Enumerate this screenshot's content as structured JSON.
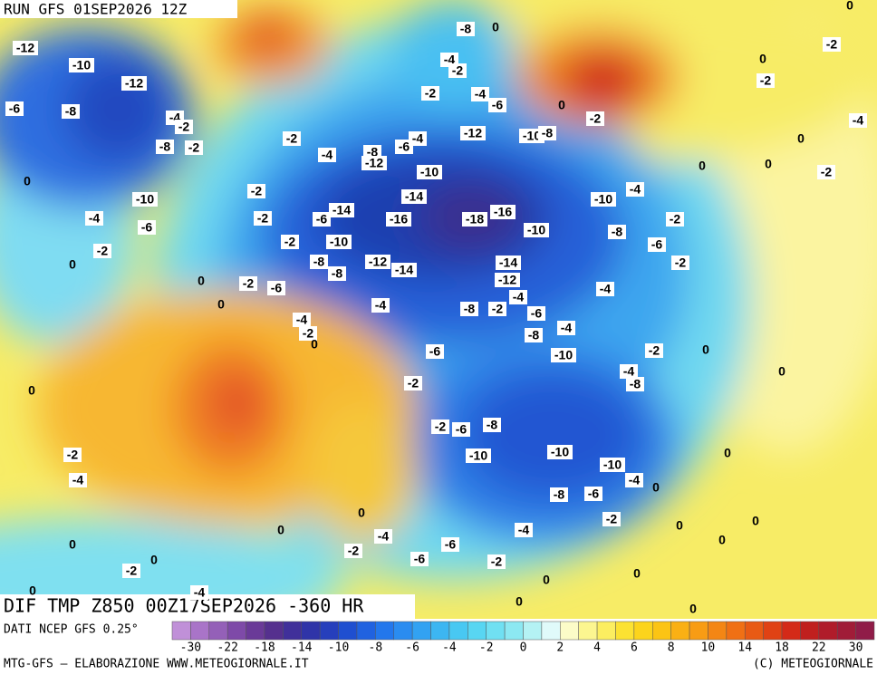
{
  "header": {
    "run": "RUN GFS 01SEP2026 12Z"
  },
  "map": {
    "title": "DIF TMP Z850 00Z17SEP2026 -360 HR",
    "labels": [
      -12,
      -10,
      -12,
      -6,
      -8,
      -4,
      -2,
      -8,
      -2,
      -2,
      -4,
      -8,
      -12,
      -6,
      -4,
      -10,
      -14,
      -14,
      -6,
      -16,
      -18,
      -16,
      -10,
      -10,
      -12,
      -14,
      -14,
      -12,
      -8,
      -8,
      -4,
      -8,
      -2,
      -4,
      -6,
      -12,
      -10,
      -8,
      -8,
      0,
      -4,
      -2,
      -2,
      -4,
      -6,
      0,
      -2,
      -2,
      0,
      -2,
      -4,
      0,
      0,
      0,
      -2,
      -10,
      -4,
      -8,
      -2,
      -6,
      -2,
      -4,
      0,
      -4,
      -6,
      -10,
      -2,
      0,
      0,
      0,
      -2,
      -2,
      -2,
      -2,
      -6,
      -4,
      -2,
      0,
      -6,
      -8,
      -10,
      -4,
      -2,
      0,
      -4,
      -8,
      0,
      0,
      -2,
      -2,
      -6,
      -8,
      -10,
      -10,
      -10,
      0,
      -2,
      -4,
      -4,
      0,
      -8,
      -6,
      -2,
      0,
      0,
      -4,
      -6,
      -4,
      -2,
      0,
      0,
      0,
      0,
      -6,
      -2,
      -2,
      0,
      0,
      0,
      0,
      0,
      0,
      0,
      -4
    ]
  },
  "legend": {
    "source": "DATI NCEP GFS 0.25°",
    "ticks": [
      -30,
      -22,
      -18,
      -14,
      -10,
      -8,
      -6,
      -4,
      -2,
      0,
      2,
      4,
      6,
      8,
      10,
      14,
      18,
      22,
      30
    ],
    "colors": [
      "#c090d8",
      "#a974c8",
      "#9460b8",
      "#7e4aa8",
      "#6a3a98",
      "#55308e",
      "#40309a",
      "#2f34a8",
      "#263fbc",
      "#1f4fd0",
      "#2062e0",
      "#2377ec",
      "#2a8cf0",
      "#32a2f2",
      "#3cb6f2",
      "#48c8f2",
      "#58d6f2",
      "#70e0f2",
      "#8ce8f2",
      "#b4f2f4",
      "#e0fafa",
      "#fcfcc8",
      "#fcf690",
      "#fcee60",
      "#fce232",
      "#fcd41c",
      "#fcc414",
      "#fab014",
      "#f89c14",
      "#f48614",
      "#f07014",
      "#e85a14",
      "#e04214",
      "#d42a18",
      "#c0201e",
      "#b01c2a",
      "#a01c38",
      "#901c48"
    ]
  },
  "footer": {
    "credit": "MTG-GFS — ELABORAZIONE WWW.METEOGIORNALE.IT",
    "copyright": "(C) METEOGIORNALE"
  }
}
